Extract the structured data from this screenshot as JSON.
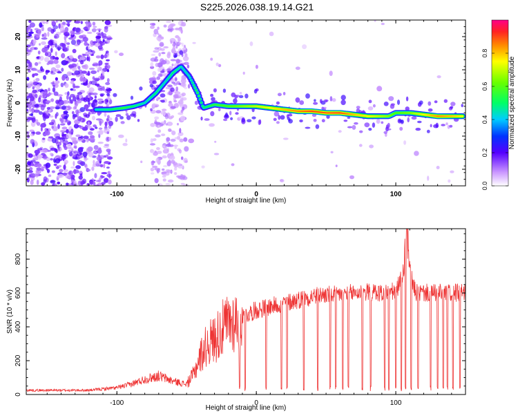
{
  "title": "S225.2026.038.19.14.G21",
  "chart_data": [
    {
      "type": "heatmap",
      "title": "S225.2026.038.19.14.G21",
      "xlabel": "Height of straight line (km)",
      "ylabel": "Frequency (Hz)",
      "xlim": [
        -165,
        150
      ],
      "ylim": [
        -25,
        25
      ],
      "xticks": [
        -100,
        0,
        100
      ],
      "yticks": [
        -20,
        -10,
        0,
        10,
        20
      ],
      "colorbar_label": "Normalized spectral amplitude",
      "colorbar_ticks": [
        0.0,
        0.2,
        0.4,
        0.6,
        0.8
      ],
      "colorbar_range": [
        0,
        1
      ],
      "ridge": {
        "x": [
          -115,
          -105,
          -95,
          -88,
          -80,
          -72,
          -66,
          -60,
          -54,
          -48,
          -42,
          -38,
          -30,
          -20,
          -10,
          0,
          10,
          20,
          30,
          40,
          50,
          60,
          70,
          80,
          88,
          95,
          100,
          110,
          120,
          130,
          140,
          148
        ],
        "y": [
          -2,
          -2,
          -1.5,
          -1,
          0,
          3,
          6,
          9,
          11,
          8,
          3,
          -1.5,
          -0.5,
          -1,
          -1,
          -1,
          -1.5,
          -2,
          -2.5,
          -2.5,
          -3,
          -3,
          -3.5,
          -4,
          -4,
          -4,
          -3,
          -3,
          -3.5,
          -4,
          -4,
          -4
        ],
        "amplitude": [
          0.45,
          0.5,
          0.55,
          0.5,
          0.45,
          0.5,
          0.45,
          0.5,
          0.45,
          0.45,
          0.55,
          0.5,
          0.55,
          0.6,
          0.65,
          0.7,
          0.75,
          0.8,
          0.85,
          0.9,
          0.88,
          0.9,
          0.8,
          0.75,
          0.7,
          0.65,
          0.6,
          0.65,
          0.75,
          0.85,
          0.8,
          0.75
        ]
      }
    },
    {
      "type": "line",
      "xlabel": "Height of straight line (km)",
      "ylabel": "SNR (10 * v/v)",
      "xlim": [
        -165,
        150
      ],
      "ylim": [
        0,
        980
      ],
      "xticks": [
        -100,
        0,
        100
      ],
      "yticks": [
        0,
        200,
        400,
        600,
        800
      ],
      "envelope": {
        "x": [
          -165,
          -120,
          -100,
          -90,
          -80,
          -70,
          -60,
          -50,
          -45,
          -40,
          -35,
          -30,
          -25,
          -20,
          -10,
          0,
          10,
          20,
          30,
          40,
          50,
          60,
          70,
          80,
          90,
          100,
          105,
          108,
          110,
          112,
          115,
          120,
          130,
          140,
          150
        ],
        "y": [
          25,
          25,
          40,
          60,
          90,
          110,
          80,
          60,
          120,
          230,
          300,
          330,
          380,
          420,
          460,
          500,
          520,
          540,
          560,
          580,
          590,
          595,
          600,
          605,
          600,
          610,
          700,
          900,
          750,
          650,
          600,
          600,
          600,
          600,
          600
        ]
      },
      "dropouts_x": [
        -12,
        -8,
        7,
        18,
        22,
        34,
        44,
        53,
        57,
        62,
        66,
        76,
        82,
        92,
        95,
        100,
        104,
        107,
        111,
        116,
        125,
        130,
        134,
        137,
        141,
        146
      ],
      "series": [
        {
          "name": "SNR",
          "color": "#ee3333"
        }
      ]
    }
  ]
}
